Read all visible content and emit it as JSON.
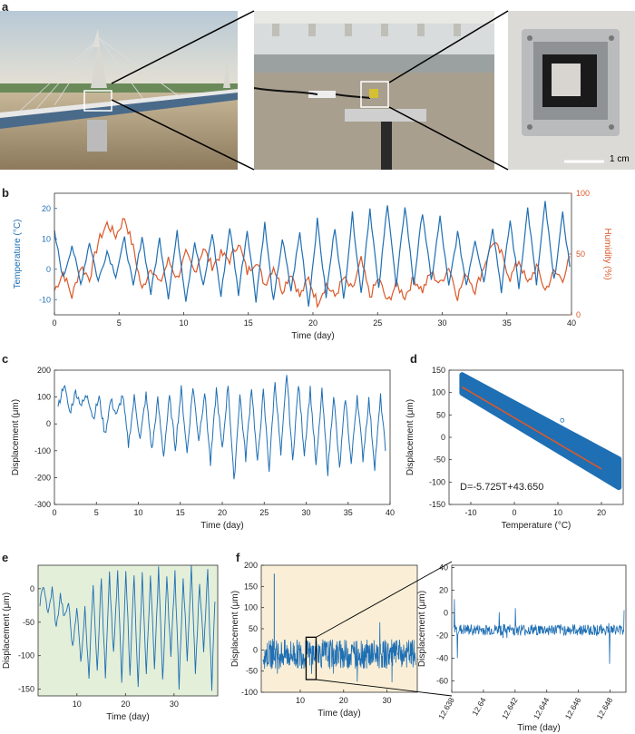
{
  "panels": {
    "a": "a",
    "b": "b",
    "c": "c",
    "d": "d",
    "e": "e",
    "f": "f"
  },
  "photo_a": {
    "scale_bar_label": "1 cm",
    "scene_left": "cable-stayed bridge over river",
    "scene_mid": "sensor mounted at bridge expansion joint",
    "scene_right": "sensor enclosure"
  },
  "colors": {
    "blue": "#1f6fb4",
    "orange": "#d9592a",
    "green_bg": "#e4efd9",
    "yellow_bg": "#faefd6",
    "fit_line": "#d9592a"
  },
  "chart_data": [
    {
      "id": "b",
      "type": "line",
      "xlabel": "Time (day)",
      "ylabel": "Temperature (°C)",
      "ylabel_right": "Humidity (%)",
      "xlim": [
        0,
        40
      ],
      "ylim": [
        -15,
        25
      ],
      "ylim_right": [
        0,
        100
      ],
      "xticks": [
        0,
        5,
        10,
        15,
        20,
        25,
        30,
        35,
        40
      ],
      "yticks": [
        -10,
        0,
        10,
        20
      ],
      "yticks_right": [
        0,
        50,
        100
      ],
      "series": [
        {
          "name": "Temperature",
          "axis": "left",
          "color": "#1f6fb4",
          "values": [
            12,
            -3,
            8,
            -5,
            9,
            -4,
            6,
            -2,
            10,
            -6,
            11,
            -8,
            10,
            -9,
            12,
            -10,
            9,
            -6,
            12,
            -9,
            14,
            -8,
            13,
            -10,
            15,
            -11,
            10,
            -7,
            12,
            -12,
            16,
            -9,
            14,
            -10,
            18,
            -8,
            20,
            -7,
            22,
            -6,
            21,
            -5,
            19,
            -4,
            17,
            -6,
            12,
            -5,
            10,
            -4,
            14,
            -7,
            16,
            -6,
            20,
            -5,
            22,
            -4,
            18,
            -3
          ]
        },
        {
          "name": "Humidity",
          "axis": "right",
          "color": "#d9592a",
          "values": [
            20,
            35,
            15,
            40,
            30,
            60,
            75,
            65,
            80,
            55,
            20,
            40,
            25,
            45,
            30,
            50,
            35,
            55,
            40,
            50,
            45,
            60,
            35,
            45,
            25,
            40,
            20,
            35,
            15,
            30,
            10,
            25,
            15,
            30,
            20,
            45,
            15,
            30,
            10,
            25,
            15,
            30,
            20,
            35,
            25,
            40,
            15,
            35,
            20,
            40,
            60,
            50,
            30,
            45,
            25,
            40,
            20,
            35,
            30,
            50
          ]
        }
      ]
    },
    {
      "id": "c",
      "type": "line",
      "xlabel": "Time (day)",
      "ylabel": "Displacement (μm)",
      "xlim": [
        0,
        40
      ],
      "ylim": [
        -300,
        200
      ],
      "xticks": [
        0,
        5,
        10,
        15,
        20,
        25,
        30,
        35,
        40
      ],
      "yticks": [
        -300,
        -200,
        -100,
        0,
        100,
        200
      ],
      "series": [
        {
          "name": "Displacement",
          "color": "#1f6fb4",
          "values": [
            60,
            150,
            40,
            120,
            70,
            110,
            20,
            100,
            -40,
            90,
            30,
            110,
            -80,
            100,
            -60,
            110,
            -100,
            90,
            -120,
            100,
            -90,
            130,
            -110,
            140,
            -60,
            120,
            -150,
            130,
            -100,
            150,
            -220,
            110,
            -130,
            140,
            -150,
            120,
            -170,
            160,
            -120,
            190,
            -140,
            150,
            -110,
            130,
            -160,
            120,
            -180,
            110,
            -170,
            100,
            -150,
            110,
            -130,
            90,
            -160,
            100,
            -140
          ]
        }
      ]
    },
    {
      "id": "d",
      "type": "scatter",
      "xlabel": "Temperature (°C)",
      "ylabel": "Displacement (μm)",
      "xlim": [
        -15,
        25
      ],
      "ylim": [
        -150,
        150
      ],
      "xticks": [
        -10,
        0,
        10,
        20
      ],
      "yticks": [
        -150,
        -100,
        -50,
        0,
        50,
        100,
        150
      ],
      "fit_equation": "D=-5.725T+43.650",
      "fit": {
        "slope": -5.725,
        "intercept": 43.65,
        "x_range": [
          -12,
          20
        ]
      },
      "outlier": {
        "x": 11,
        "y": 38
      }
    },
    {
      "id": "e",
      "type": "line",
      "xlabel": "Time (day)",
      "ylabel": "Displacement (μm)",
      "xlim": [
        2,
        39
      ],
      "ylim": [
        -160,
        35
      ],
      "xticks": [
        10,
        20,
        30
      ],
      "yticks": [
        -150,
        -100,
        -50,
        0
      ],
      "series": [
        {
          "name": "Displacement",
          "color": "#1f6fb4",
          "values": [
            -20,
            5,
            -40,
            0,
            -60,
            -10,
            -45,
            -20,
            -90,
            -25,
            -110,
            -30,
            -130,
            10,
            -120,
            15,
            -135,
            20,
            -100,
            25,
            -140,
            30,
            -125,
            20,
            -150,
            25,
            -130,
            20,
            -120,
            30,
            -140,
            15,
            -100,
            25,
            -145,
            20,
            -110,
            30,
            -130,
            10,
            -90,
            25,
            -150,
            30
          ]
        }
      ]
    },
    {
      "id": "f",
      "type": "line",
      "xlabel": "Time (day)",
      "ylabel": "Displacement (μm)",
      "xlim": [
        1,
        37
      ],
      "ylim": [
        -100,
        200
      ],
      "xticks": [
        10,
        20,
        30
      ],
      "yticks": [
        -100,
        -50,
        0,
        50,
        100,
        150,
        200
      ],
      "zoom_box": {
        "x_range": [
          12.638,
          12.649
        ],
        "y_range": [
          -70,
          30
        ]
      },
      "spike": {
        "x": 4,
        "y": 180
      }
    },
    {
      "id": "f_zoom",
      "type": "line",
      "xlabel": "Time (day)",
      "ylabel": "Displacement (μm)",
      "xlim": [
        12.638,
        12.649
      ],
      "ylim": [
        -70,
        42
      ],
      "xticks": [
        "12.638",
        "12.64",
        "12.642",
        "12.644",
        "12.646",
        "12.648"
      ],
      "yticks": [
        -60,
        -40,
        -20,
        0,
        20,
        40
      ],
      "baseline": -15
    }
  ]
}
